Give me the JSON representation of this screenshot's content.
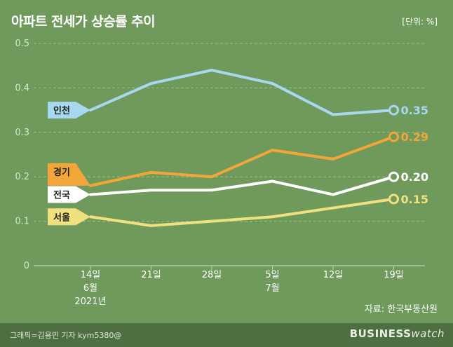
{
  "header": {
    "title": "아파트 전세가 상승률 추이",
    "unit": "[단위: %]"
  },
  "footer": {
    "credit": "그래픽=김용민 기자 kym5380@",
    "brand_bold": "BUSINESS",
    "brand_light": "watch"
  },
  "colors": {
    "background": "#6f9a5c",
    "footer": "#4e6f42",
    "grid": "#9cbf8b",
    "incheon": "#a8d8ef",
    "gyeonggi": "#f2a63a",
    "national": "#ffffff",
    "seoul": "#f1e07f"
  },
  "chart_data": {
    "type": "line",
    "title": "아파트 전세가 상승률 추이",
    "source": "자료: 한국부동산원",
    "ylim": [
      0,
      0.5
    ],
    "yticks": [
      "0",
      "0.1",
      "0.2",
      "0.3",
      "0.4",
      "0.5"
    ],
    "grid": true,
    "x": [
      [
        "14일",
        "6월",
        "2021년"
      ],
      [
        "21일"
      ],
      [
        "28일"
      ],
      [
        "5일",
        "7월"
      ],
      [
        "12일"
      ],
      [
        "19일"
      ]
    ],
    "series": [
      {
        "name": "인천",
        "values": [
          0.35,
          0.41,
          0.44,
          0.41,
          0.34,
          0.35
        ],
        "end_label": "0.35",
        "color": "#a8d8ef"
      },
      {
        "name": "경기",
        "values": [
          0.18,
          0.21,
          0.2,
          0.26,
          0.24,
          0.29
        ],
        "end_label": "0.29",
        "color": "#f2a63a"
      },
      {
        "name": "전국",
        "values": [
          0.16,
          0.17,
          0.17,
          0.19,
          0.16,
          0.2
        ],
        "end_label": "0.20",
        "color": "#ffffff"
      },
      {
        "name": "서울",
        "values": [
          0.11,
          0.09,
          0.1,
          0.11,
          0.13,
          0.15
        ],
        "end_label": "0.15",
        "color": "#f1e07f"
      }
    ]
  }
}
